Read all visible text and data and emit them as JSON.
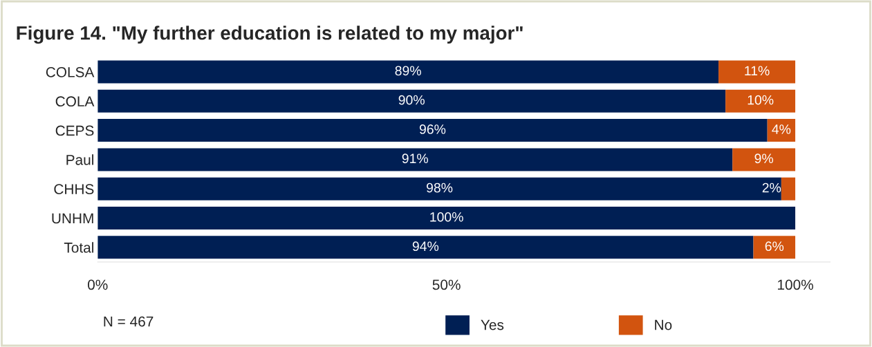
{
  "chart_data": {
    "type": "bar",
    "title": "Figure 14. \"My further education is related to my major\"",
    "orientation": "horizontal",
    "stacked": true,
    "categories": [
      "COLSA",
      "COLA",
      "CEPS",
      "Paul",
      "CHHS",
      "UNHM",
      "Total"
    ],
    "series": [
      {
        "name": "Yes",
        "color": "#001f54",
        "values": [
          89,
          90,
          96,
          91,
          98,
          100,
          94
        ],
        "value_labels": [
          "89%",
          "90%",
          "96%",
          "91%",
          "98%",
          "100%",
          "94%"
        ]
      },
      {
        "name": "No",
        "color": "#d2540f",
        "values": [
          11,
          10,
          4,
          9,
          2,
          null,
          6
        ],
        "value_labels": [
          "11%",
          "10%",
          "4%",
          "9%",
          "2%",
          null,
          "6%"
        ]
      }
    ],
    "xlim": [
      0,
      105
    ],
    "xticks": [
      {
        "value": 0,
        "label": "0%"
      },
      {
        "value": 50,
        "label": "50%"
      },
      {
        "value": 100,
        "label": "100%"
      }
    ],
    "legend": "bottom",
    "annotations": [
      "N = 467"
    ]
  }
}
